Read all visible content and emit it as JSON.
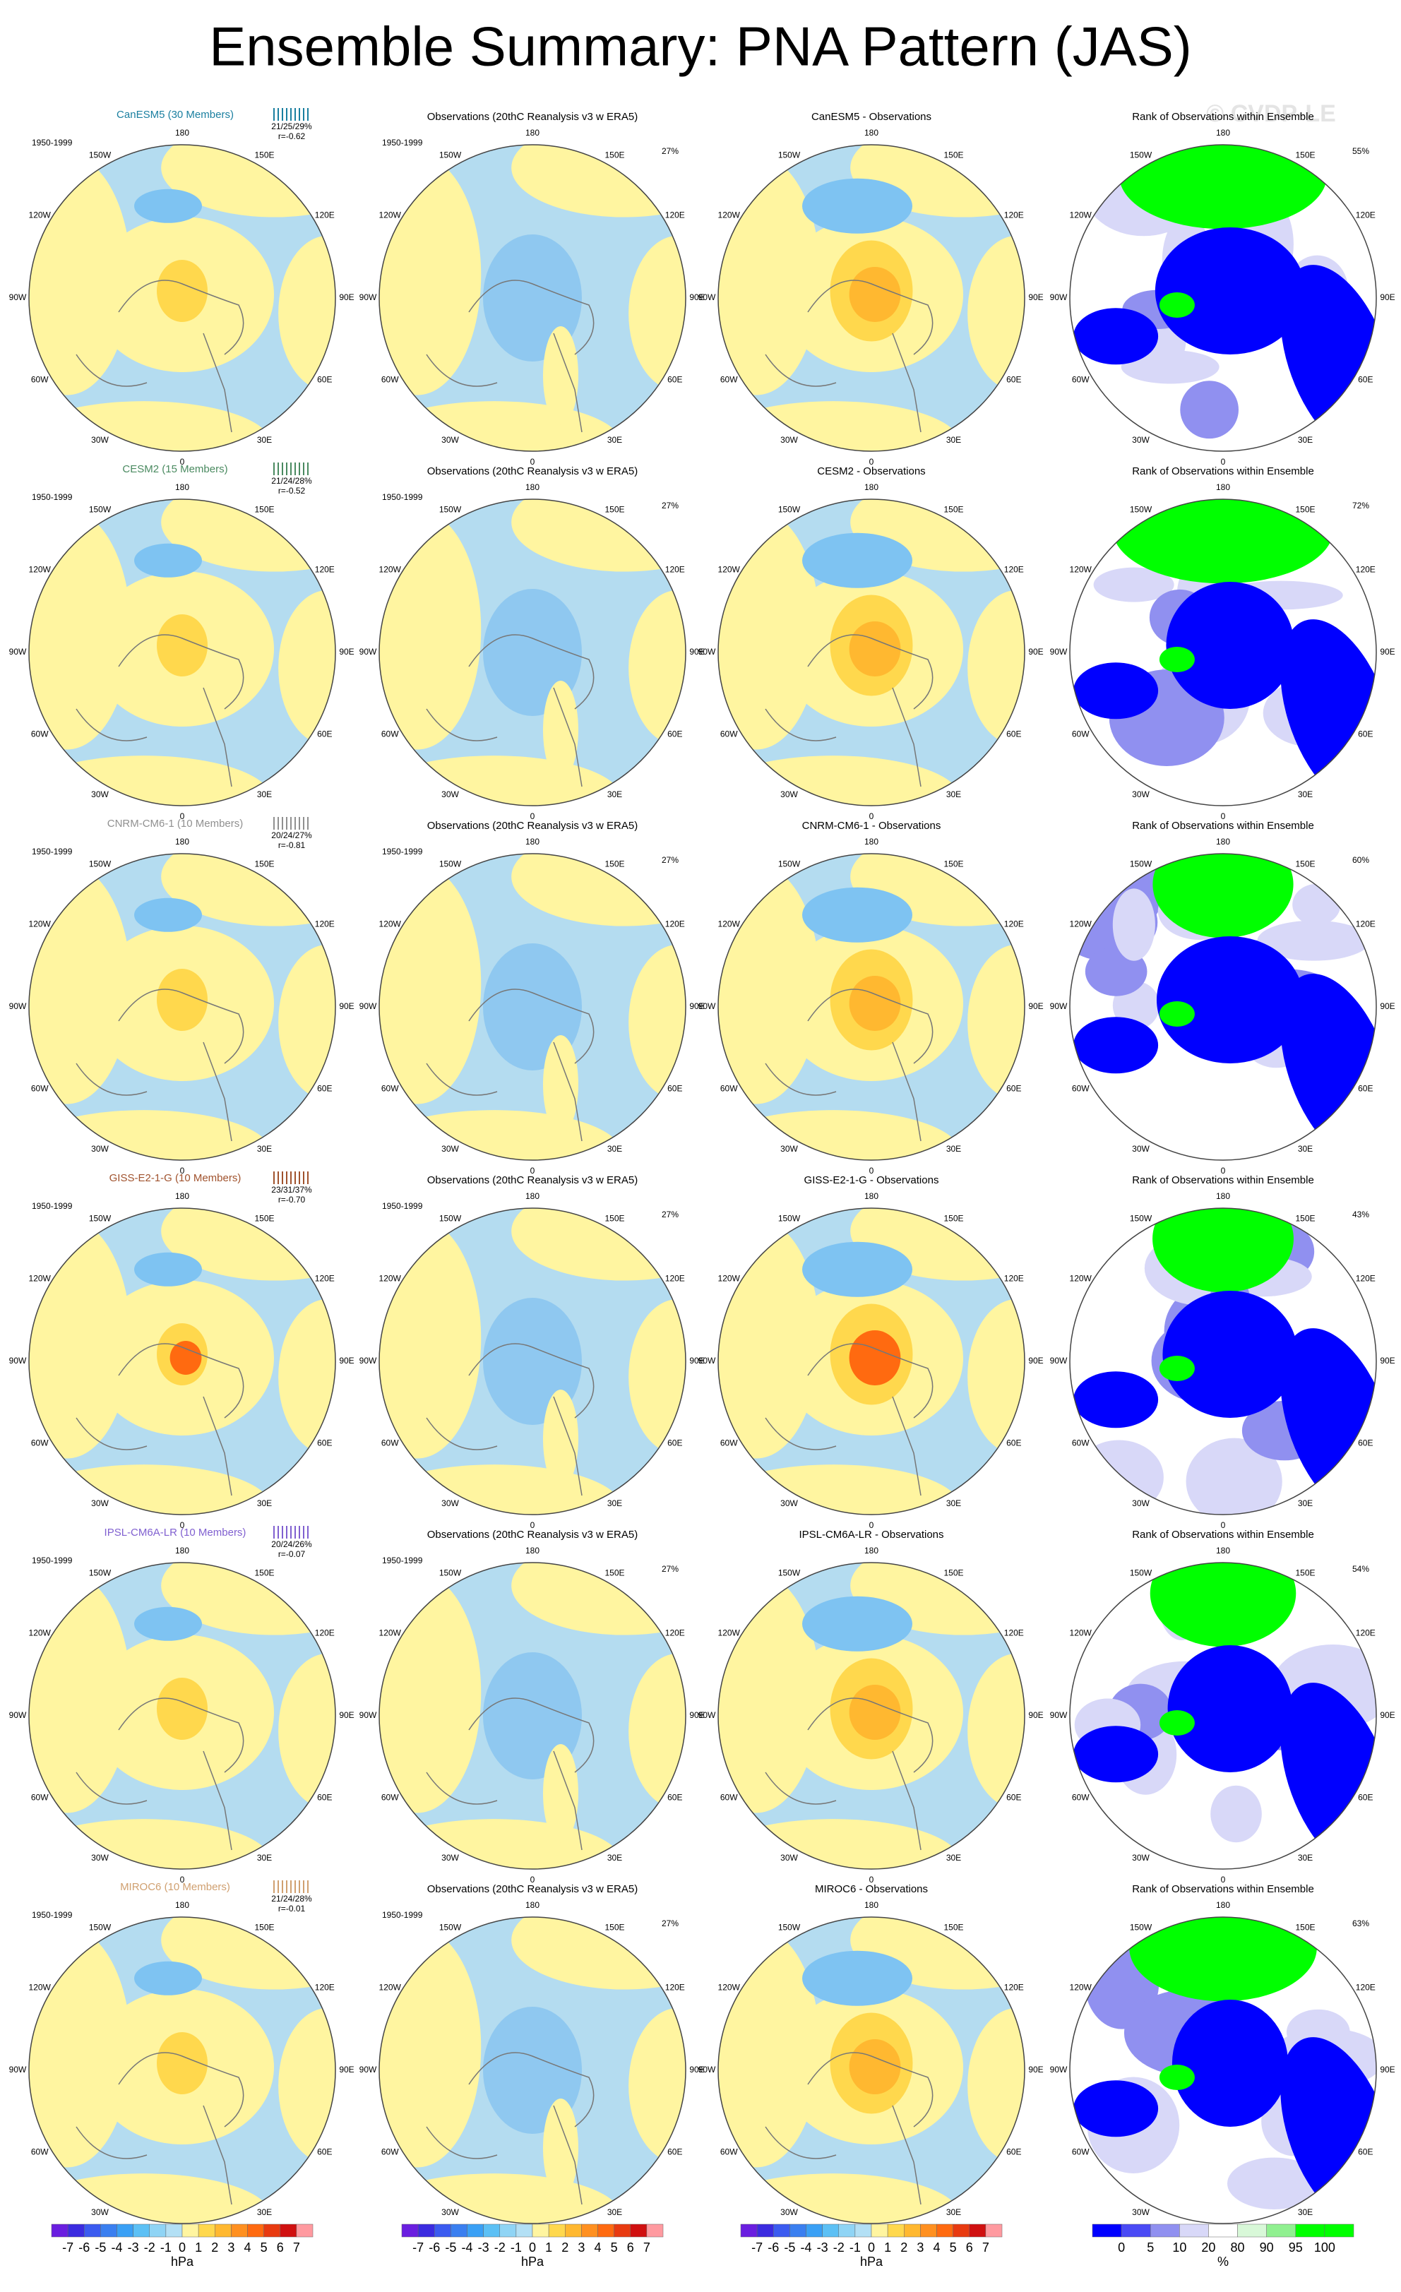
{
  "title": "Ensemble Summary: PNA Pattern (JAS)",
  "watermark": "© CVDP-LE",
  "longitude_labels": [
    "180",
    "150E",
    "120E",
    "90E",
    "60E",
    "30E",
    "0",
    "30W",
    "60W",
    "90W",
    "120W",
    "150W"
  ],
  "rows": [
    {
      "model_title": "CanESM5 (30 Members)",
      "period": "1950-1999",
      "stats": "21/25/29%",
      "correlation": "r=-0.62",
      "obs_title": "Observations (20thC Reanalysis v3 w ERA5)",
      "obs_period": "1950-1999",
      "obs_pct": "27%",
      "diff_title": "CanESM5 - Observations",
      "rank_title": "Rank of Observations within Ensemble",
      "rank_pct": "55%"
    },
    {
      "model_title": "CESM2 (15 Members)",
      "period": "1950-1999",
      "stats": "21/24/28%",
      "correlation": "r=-0.52",
      "obs_title": "Observations (20thC Reanalysis v3 w ERA5)",
      "obs_period": "1950-1999",
      "obs_pct": "27%",
      "diff_title": "CESM2 - Observations",
      "rank_title": "Rank of Observations within Ensemble",
      "rank_pct": "72%"
    },
    {
      "model_title": "CNRM-CM6-1 (10 Members)",
      "period": "1950-1999",
      "stats": "20/24/27%",
      "correlation": "r=-0.81",
      "obs_title": "Observations (20thC Reanalysis v3 w ERA5)",
      "obs_period": "1950-1999",
      "obs_pct": "27%",
      "diff_title": "CNRM-CM6-1 - Observations",
      "rank_title": "Rank of Observations within Ensemble",
      "rank_pct": "60%"
    },
    {
      "model_title": "GISS-E2-1-G (10 Members)",
      "period": "1950-1999",
      "stats": "23/31/37%",
      "correlation": "r=-0.70",
      "obs_title": "Observations (20thC Reanalysis v3 w ERA5)",
      "obs_period": "1950-1999",
      "obs_pct": "27%",
      "diff_title": "GISS-E2-1-G - Observations",
      "rank_title": "Rank of Observations within Ensemble",
      "rank_pct": "43%"
    },
    {
      "model_title": "IPSL-CM6A-LR (10 Members)",
      "period": "1950-1999",
      "stats": "20/24/26%",
      "correlation": "r=-0.07",
      "obs_title": "Observations (20thC Reanalysis v3 w ERA5)",
      "obs_period": "1950-1999",
      "obs_pct": "27%",
      "diff_title": "IPSL-CM6A-LR - Observations",
      "rank_title": "Rank of Observations within Ensemble",
      "rank_pct": "54%"
    },
    {
      "model_title": "MIROC6 (10 Members)",
      "period": "1950-1999",
      "stats": "21/24/28%",
      "correlation": "r=-0.01",
      "obs_title": "Observations (20thC Reanalysis v3 w ERA5)",
      "obs_period": "1950-1999",
      "obs_pct": "27%",
      "diff_title": "MIROC6 - Observations",
      "rank_title": "Rank of Observations within Ensemble",
      "rank_pct": "63%"
    }
  ],
  "colorbars": [
    {
      "labels": [
        "-7",
        "-6",
        "-5",
        "-4",
        "-3",
        "-2",
        "-1",
        "0",
        "1",
        "2",
        "3",
        "4",
        "5",
        "6",
        "7"
      ],
      "unit": "hPa"
    },
    {
      "labels": [
        "-7",
        "-6",
        "-5",
        "-4",
        "-3",
        "-2",
        "-1",
        "0",
        "1",
        "2",
        "3",
        "4",
        "5",
        "6",
        "7"
      ],
      "unit": "hPa"
    },
    {
      "labels": [
        "-7",
        "-6",
        "-5",
        "-4",
        "-3",
        "-2",
        "-1",
        "0",
        "1",
        "2",
        "3",
        "4",
        "5",
        "6",
        "7"
      ],
      "unit": "hPa"
    },
    {
      "labels": [
        "0",
        "5",
        "10",
        "20",
        "80",
        "90",
        "95",
        "100"
      ],
      "unit": "%"
    }
  ]
}
